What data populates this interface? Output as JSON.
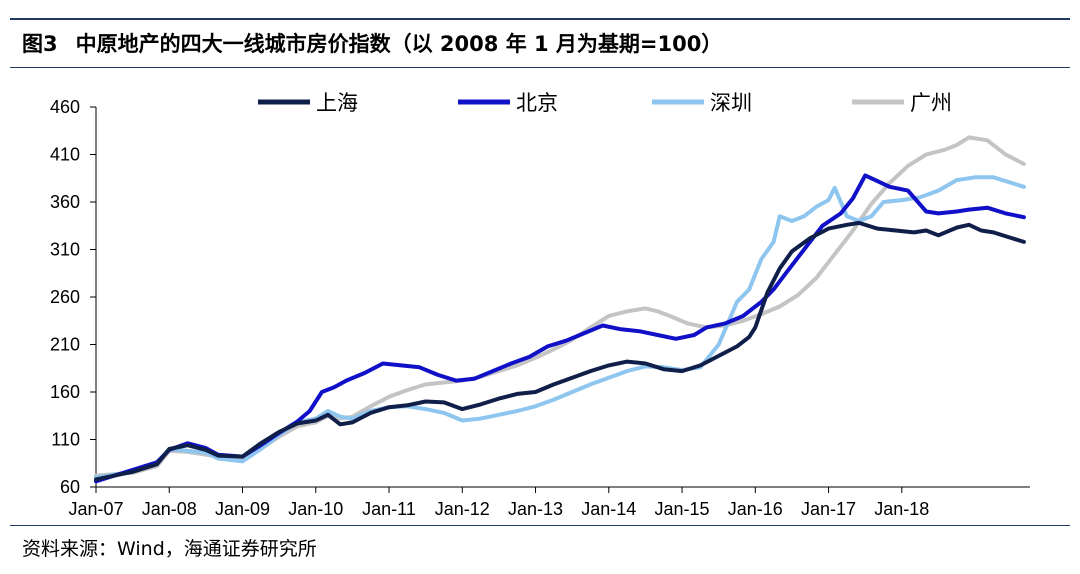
{
  "header": {
    "figure_number": "图3",
    "title": "中原地产的四大一线城市房价指数（以 2008 年 1 月为基期=100）"
  },
  "source": "资料来源：Wind，海通证券研究所",
  "chart_data": {
    "type": "line",
    "title": "中原地产的四大一线城市房价指数（以 2008 年 1 月为基期=100）",
    "xlabel": "",
    "ylabel": "",
    "ylim": [
      60,
      460
    ],
    "yticks": [
      60,
      110,
      160,
      210,
      260,
      310,
      360,
      410,
      460
    ],
    "xticks": [
      "Jan-07",
      "Jan-08",
      "Jan-09",
      "Jan-10",
      "Jan-11",
      "Jan-12",
      "Jan-13",
      "Jan-14",
      "Jan-15",
      "Jan-16",
      "Jan-17",
      "Jan-18"
    ],
    "x_unit": "months since Jan-07",
    "grid": false,
    "legend_position": "top",
    "series": [
      {
        "name": "上海",
        "color": "#0f1f4a",
        "points": [
          [
            0,
            68
          ],
          [
            6,
            76
          ],
          [
            10,
            84
          ],
          [
            12,
            100
          ],
          [
            15,
            104
          ],
          [
            18,
            99
          ],
          [
            20,
            93
          ],
          [
            24,
            92
          ],
          [
            27,
            106
          ],
          [
            30,
            118
          ],
          [
            33,
            127
          ],
          [
            36,
            130
          ],
          [
            38,
            136
          ],
          [
            40,
            126
          ],
          [
            42,
            128
          ],
          [
            45,
            138
          ],
          [
            48,
            144
          ],
          [
            51,
            146
          ],
          [
            54,
            150
          ],
          [
            57,
            149
          ],
          [
            60,
            142
          ],
          [
            63,
            147
          ],
          [
            66,
            153
          ],
          [
            69,
            158
          ],
          [
            72,
            160
          ],
          [
            75,
            168
          ],
          [
            78,
            175
          ],
          [
            81,
            182
          ],
          [
            84,
            188
          ],
          [
            87,
            192
          ],
          [
            90,
            190
          ],
          [
            93,
            184
          ],
          [
            96,
            182
          ],
          [
            99,
            188
          ],
          [
            102,
            198
          ],
          [
            105,
            208
          ],
          [
            107,
            218
          ],
          [
            108,
            228
          ],
          [
            110,
            265
          ],
          [
            112,
            290
          ],
          [
            114,
            308
          ],
          [
            117,
            322
          ],
          [
            120,
            332
          ],
          [
            123,
            336
          ],
          [
            125,
            338
          ],
          [
            128,
            332
          ],
          [
            131,
            330
          ],
          [
            134,
            328
          ],
          [
            136,
            330
          ],
          [
            138,
            325
          ],
          [
            141,
            333
          ],
          [
            143,
            336
          ],
          [
            145,
            330
          ],
          [
            147,
            328
          ],
          [
            150,
            322
          ],
          [
            152,
            318
          ]
        ]
      },
      {
        "name": "北京",
        "color": "#1010c8",
        "points": [
          [
            0,
            66
          ],
          [
            6,
            78
          ],
          [
            10,
            86
          ],
          [
            12,
            99
          ],
          [
            15,
            106
          ],
          [
            18,
            101
          ],
          [
            20,
            94
          ],
          [
            24,
            92
          ],
          [
            27,
            104
          ],
          [
            30,
            117
          ],
          [
            33,
            129
          ],
          [
            35,
            140
          ],
          [
            37,
            160
          ],
          [
            39,
            165
          ],
          [
            41,
            172
          ],
          [
            44,
            180
          ],
          [
            47,
            190
          ],
          [
            50,
            188
          ],
          [
            53,
            186
          ],
          [
            56,
            178
          ],
          [
            59,
            172
          ],
          [
            62,
            174
          ],
          [
            65,
            182
          ],
          [
            68,
            190
          ],
          [
            71,
            197
          ],
          [
            74,
            208
          ],
          [
            77,
            214
          ],
          [
            80,
            222
          ],
          [
            83,
            230
          ],
          [
            86,
            226
          ],
          [
            89,
            224
          ],
          [
            92,
            220
          ],
          [
            95,
            216
          ],
          [
            98,
            220
          ],
          [
            100,
            228
          ],
          [
            103,
            232
          ],
          [
            106,
            240
          ],
          [
            109,
            255
          ],
          [
            111,
            268
          ],
          [
            113,
            285
          ],
          [
            116,
            310
          ],
          [
            119,
            335
          ],
          [
            122,
            348
          ],
          [
            124,
            364
          ],
          [
            126,
            388
          ],
          [
            128,
            382
          ],
          [
            130,
            376
          ],
          [
            133,
            372
          ],
          [
            136,
            350
          ],
          [
            138,
            348
          ],
          [
            141,
            350
          ],
          [
            143,
            352
          ],
          [
            146,
            354
          ],
          [
            149,
            348
          ],
          [
            152,
            344
          ]
        ]
      },
      {
        "name": "深圳",
        "color": "#8ec6f0",
        "points": [
          [
            0,
            70
          ],
          [
            6,
            76
          ],
          [
            10,
            86
          ],
          [
            12,
            100
          ],
          [
            15,
            98
          ],
          [
            18,
            96
          ],
          [
            20,
            90
          ],
          [
            24,
            87
          ],
          [
            27,
            100
          ],
          [
            30,
            115
          ],
          [
            33,
            128
          ],
          [
            36,
            132
          ],
          [
            38,
            140
          ],
          [
            40,
            134
          ],
          [
            42,
            132
          ],
          [
            45,
            140
          ],
          [
            48,
            144
          ],
          [
            51,
            145
          ],
          [
            54,
            142
          ],
          [
            57,
            138
          ],
          [
            60,
            130
          ],
          [
            63,
            132
          ],
          [
            66,
            136
          ],
          [
            69,
            140
          ],
          [
            72,
            145
          ],
          [
            75,
            152
          ],
          [
            78,
            160
          ],
          [
            81,
            168
          ],
          [
            84,
            175
          ],
          [
            87,
            182
          ],
          [
            90,
            187
          ],
          [
            93,
            186
          ],
          [
            96,
            183
          ],
          [
            99,
            186
          ],
          [
            102,
            210
          ],
          [
            105,
            255
          ],
          [
            107,
            268
          ],
          [
            109,
            300
          ],
          [
            111,
            318
          ],
          [
            112,
            345
          ],
          [
            114,
            340
          ],
          [
            116,
            345
          ],
          [
            118,
            355
          ],
          [
            120,
            362
          ],
          [
            121,
            375
          ],
          [
            123,
            345
          ],
          [
            125,
            340
          ],
          [
            127,
            345
          ],
          [
            129,
            360
          ],
          [
            132,
            362
          ],
          [
            135,
            365
          ],
          [
            138,
            372
          ],
          [
            141,
            383
          ],
          [
            144,
            386
          ],
          [
            147,
            386
          ],
          [
            150,
            380
          ],
          [
            152,
            376
          ]
        ]
      },
      {
        "name": "广州",
        "color": "#c4c4c4",
        "points": [
          [
            0,
            72
          ],
          [
            6,
            75
          ],
          [
            10,
            82
          ],
          [
            12,
            98
          ],
          [
            15,
            97
          ],
          [
            18,
            94
          ],
          [
            20,
            92
          ],
          [
            24,
            88
          ],
          [
            27,
            100
          ],
          [
            30,
            113
          ],
          [
            33,
            124
          ],
          [
            36,
            128
          ],
          [
            38,
            135
          ],
          [
            40,
            132
          ],
          [
            42,
            134
          ],
          [
            45,
            145
          ],
          [
            48,
            155
          ],
          [
            51,
            162
          ],
          [
            54,
            168
          ],
          [
            57,
            170
          ],
          [
            60,
            172
          ],
          [
            63,
            176
          ],
          [
            66,
            182
          ],
          [
            69,
            188
          ],
          [
            72,
            196
          ],
          [
            75,
            205
          ],
          [
            78,
            215
          ],
          [
            81,
            228
          ],
          [
            84,
            240
          ],
          [
            87,
            245
          ],
          [
            90,
            248
          ],
          [
            92,
            245
          ],
          [
            94,
            240
          ],
          [
            97,
            232
          ],
          [
            100,
            228
          ],
          [
            103,
            230
          ],
          [
            106,
            235
          ],
          [
            109,
            242
          ],
          [
            112,
            250
          ],
          [
            115,
            262
          ],
          [
            118,
            280
          ],
          [
            121,
            305
          ],
          [
            124,
            330
          ],
          [
            127,
            358
          ],
          [
            130,
            380
          ],
          [
            133,
            398
          ],
          [
            136,
            410
          ],
          [
            139,
            415
          ],
          [
            141,
            420
          ],
          [
            143,
            428
          ],
          [
            146,
            425
          ],
          [
            149,
            410
          ],
          [
            152,
            400
          ]
        ]
      }
    ]
  }
}
